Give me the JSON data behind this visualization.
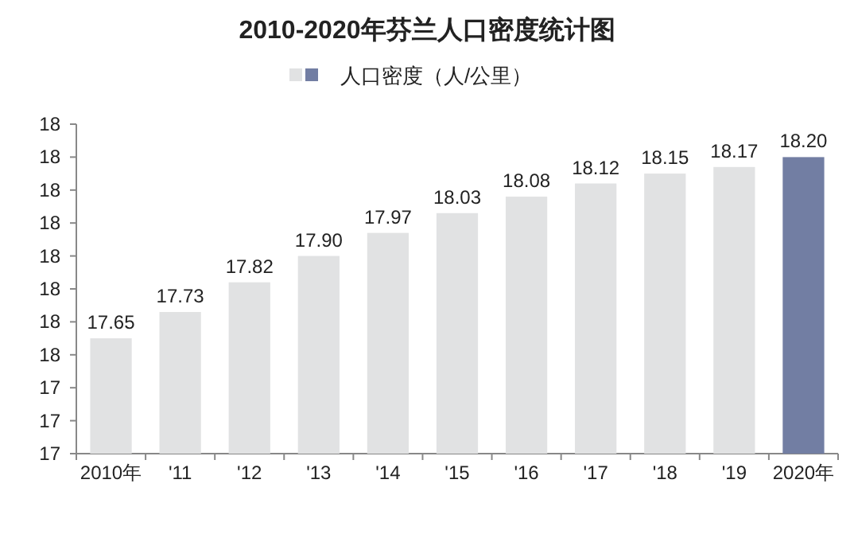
{
  "chart_data": {
    "type": "bar",
    "title": "2010-2020年芬兰人口密度统计图",
    "categories": [
      "2010年",
      "'11",
      "'12",
      "'13",
      "'14",
      "'15",
      "'16",
      "'17",
      "'18",
      "'19",
      "2020年"
    ],
    "series": [
      {
        "name": "人口密度（人/公里）",
        "colors": [
          "#e1e2e3",
          "#e1e2e3",
          "#e1e2e3",
          "#e1e2e3",
          "#e1e2e3",
          "#e1e2e3",
          "#e1e2e3",
          "#e1e2e3",
          "#e1e2e3",
          "#e1e2e3",
          "#727ea3"
        ],
        "values": [
          17.65,
          17.73,
          17.82,
          17.9,
          17.97,
          18.03,
          18.08,
          18.12,
          18.15,
          18.17,
          18.2
        ],
        "value_labels": [
          "17.65",
          "17.73",
          "17.82",
          "17.90",
          "17.97",
          "18.03",
          "18.08",
          "18.12",
          "18.15",
          "18.17",
          "18.20"
        ]
      }
    ],
    "ylim": [
      17.3,
      18.3
    ],
    "yticks": [
      {
        "value": 17.3,
        "label": "17"
      },
      {
        "value": 17.4,
        "label": "17"
      },
      {
        "value": 17.5,
        "label": "17"
      },
      {
        "value": 17.6,
        "label": "18"
      },
      {
        "value": 17.7,
        "label": "18"
      },
      {
        "value": 17.8,
        "label": "18"
      },
      {
        "value": 17.9,
        "label": "18"
      },
      {
        "value": 18.0,
        "label": "18"
      },
      {
        "value": 18.1,
        "label": "18"
      },
      {
        "value": 18.2,
        "label": "18"
      },
      {
        "value": 18.3,
        "label": "18"
      }
    ],
    "legend": "top",
    "grid": false
  }
}
